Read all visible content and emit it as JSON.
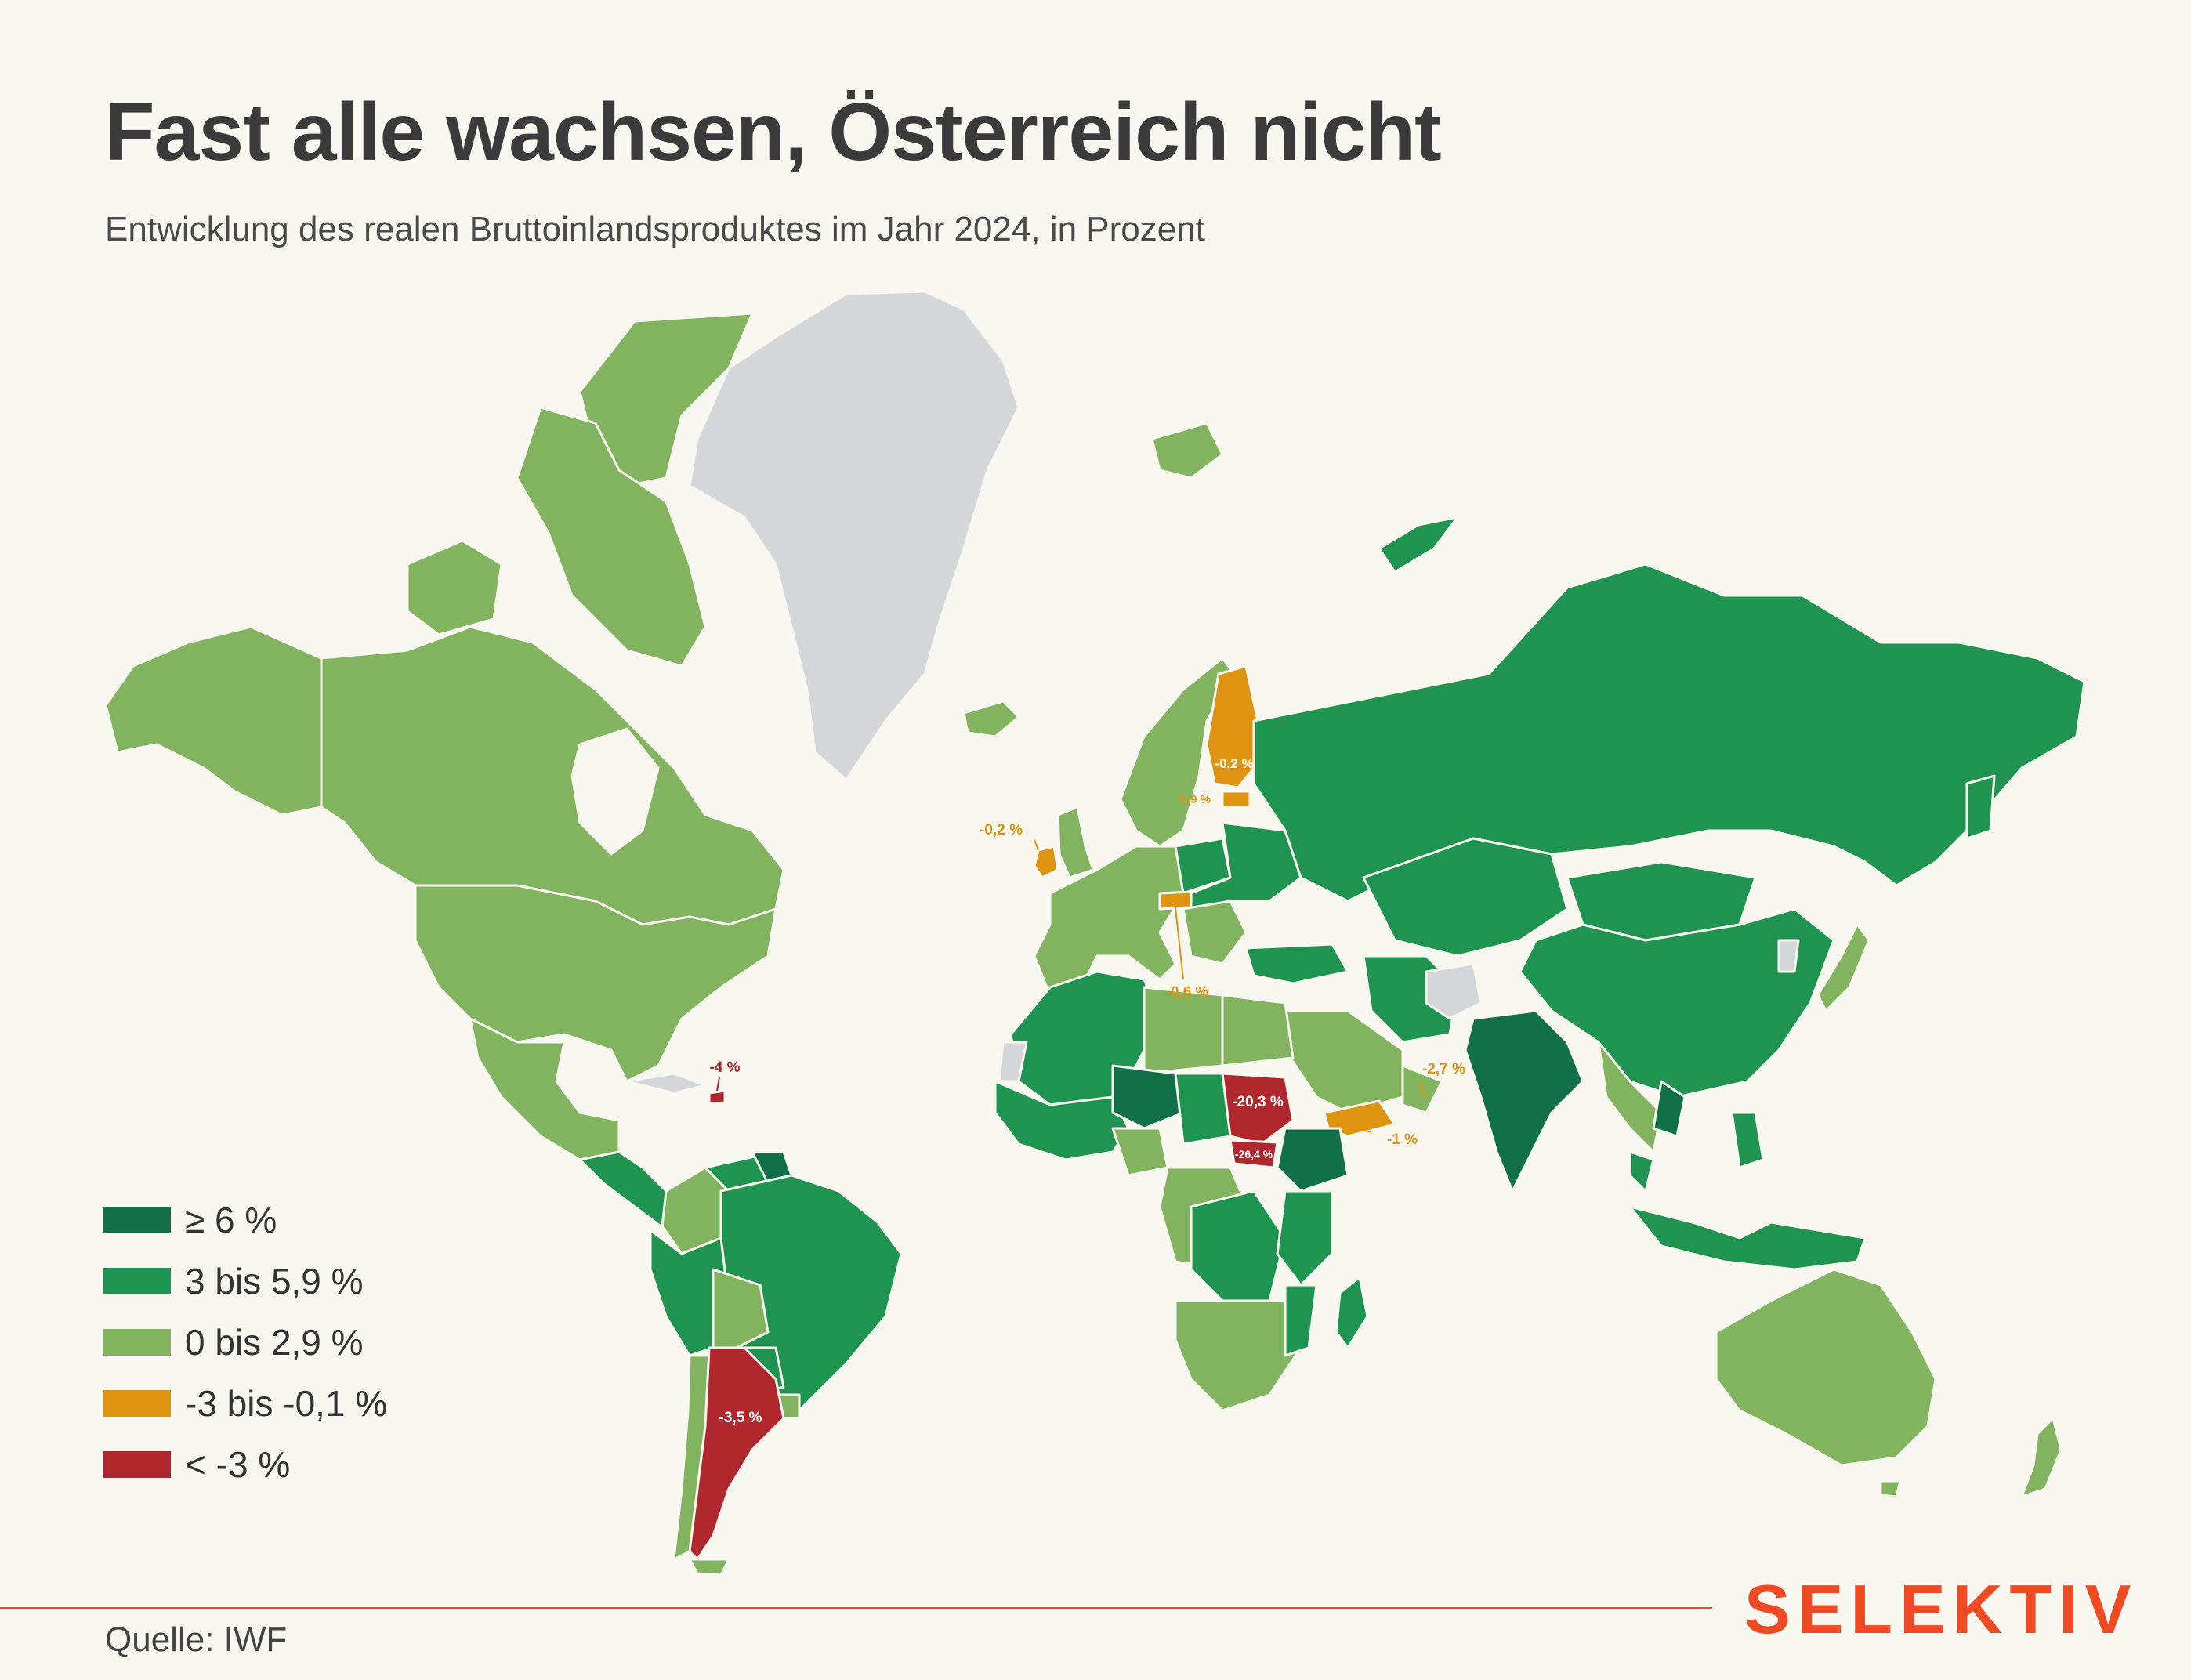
{
  "title": "Fast alle wachsen, Österreich nicht",
  "subtitle": "Entwicklung des realen Bruttoinlandsproduktes im Jahr 2024, in Prozent",
  "colors": {
    "ge6": "#116f4a",
    "g3to59": "#1f9450",
    "g0to29": "#82b35e",
    "neg_small": "#de9411",
    "neg_large": "#b1272e",
    "no_data": "#d5d6da",
    "background": "#f8f7f0",
    "accent": "#ef4a23"
  },
  "legend": [
    {
      "label": "≥ 6 %",
      "color": "#116f4a"
    },
    {
      "label": "3 bis 5,9 %",
      "color": "#1f9450"
    },
    {
      "label": "0 bis 2,9 %",
      "color": "#82b35e"
    },
    {
      "label": "-3 bis -0,1 %",
      "color": "#de9411"
    },
    {
      "label": "< -3 %",
      "color": "#b1272e"
    }
  ],
  "annotations": [
    {
      "name": "finland",
      "text": "-0,2 %"
    },
    {
      "name": "estonia",
      "text": "-0,9 %"
    },
    {
      "name": "ireland",
      "text": "-0,2 %"
    },
    {
      "name": "austria",
      "text": "-0,6 %"
    },
    {
      "name": "haiti",
      "text": "-4 %"
    },
    {
      "name": "sudan",
      "text": "-20,3 %"
    },
    {
      "name": "south-sudan",
      "text": "-26,4 %"
    },
    {
      "name": "oman",
      "text": "-2,7 %"
    },
    {
      "name": "yemen",
      "text": "-1 %"
    },
    {
      "name": "argentina",
      "text": "-3,5 %"
    }
  ],
  "source": "Quelle: IWF",
  "logo": "SELEKTIV"
}
